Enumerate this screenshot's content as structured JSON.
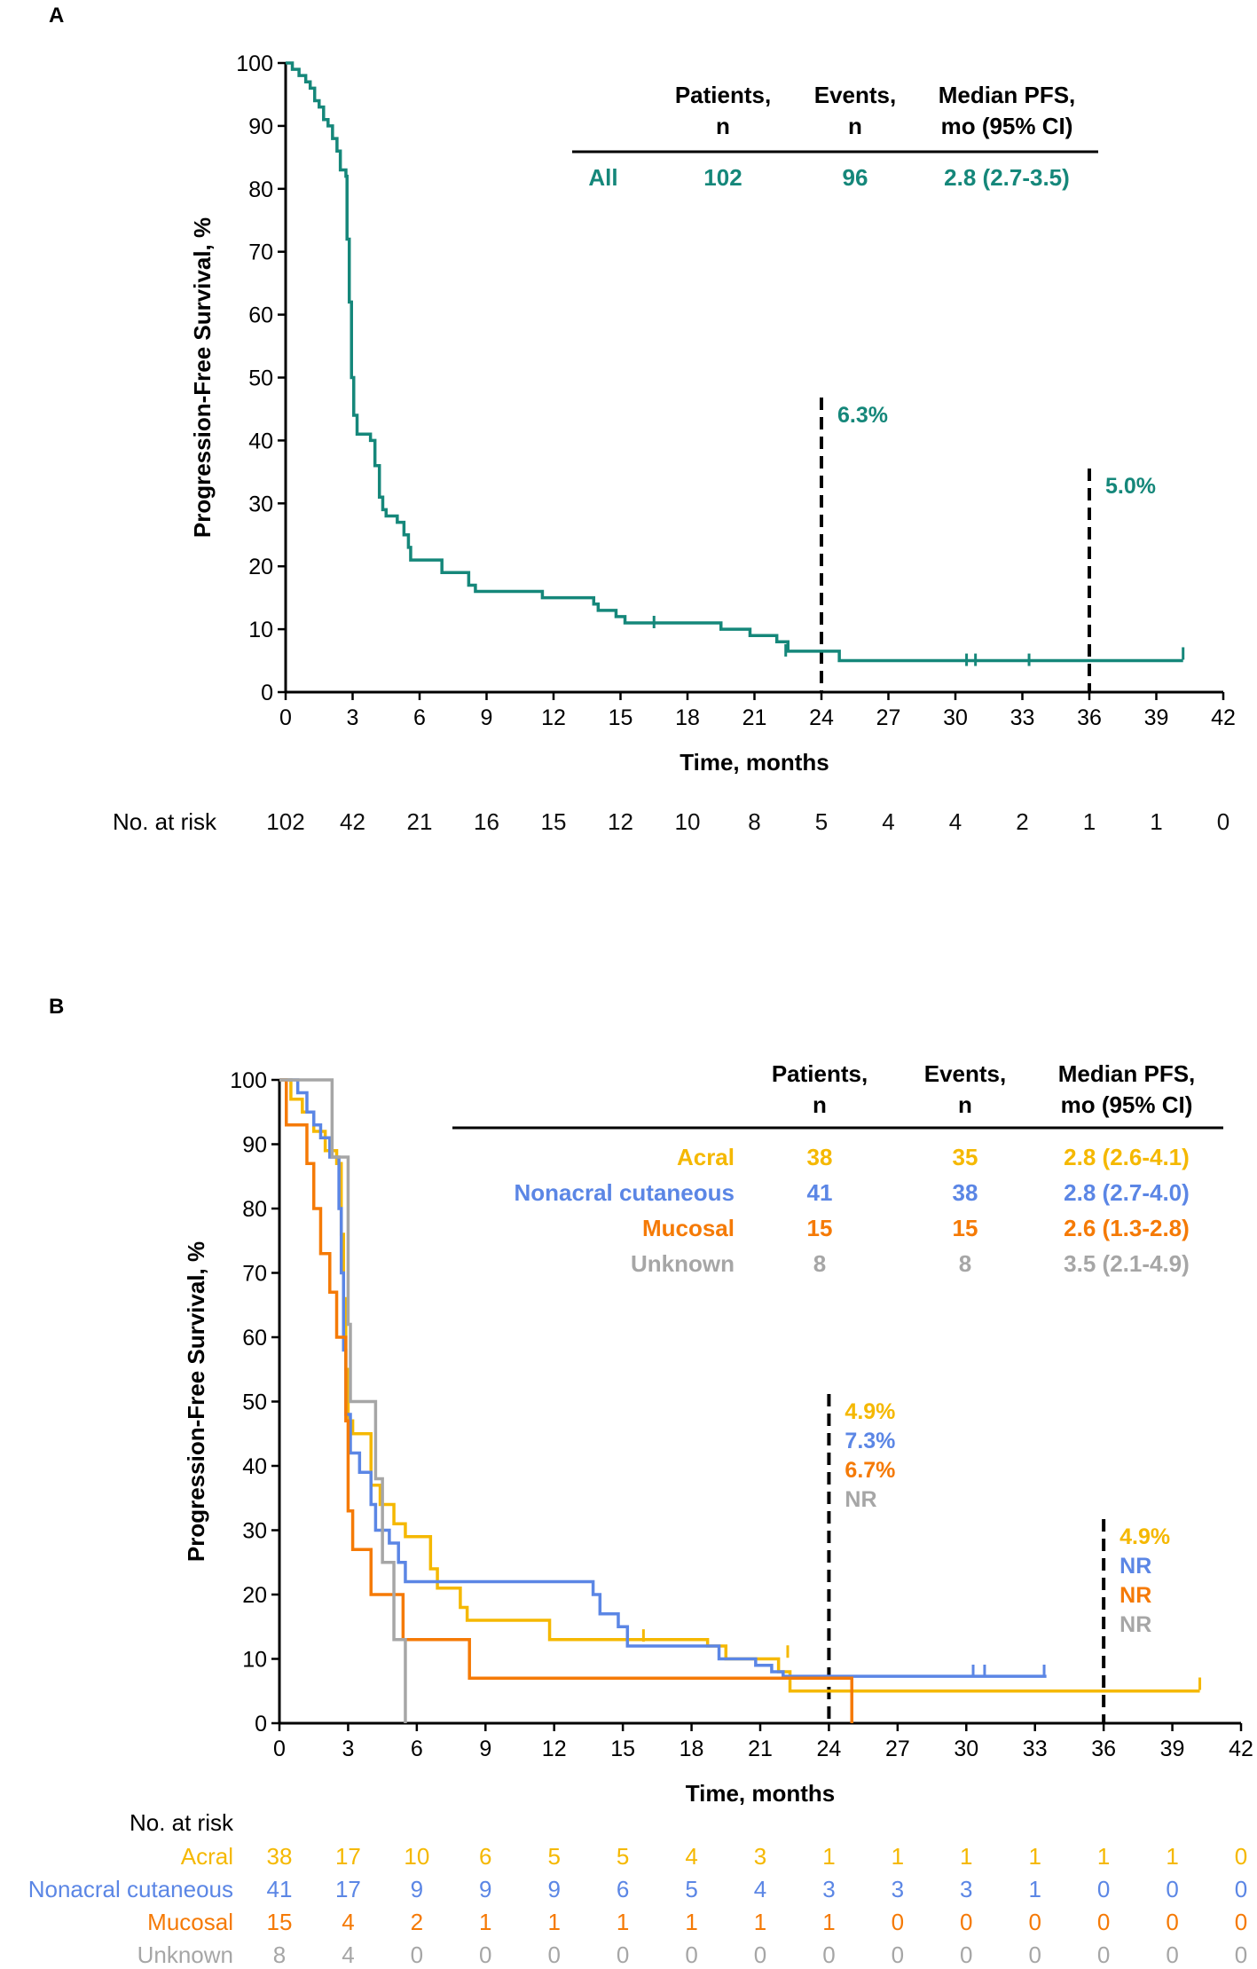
{
  "panel_a": {
    "label": "A",
    "ylabel": "Progression-Free Survival, %",
    "xlabel": "Time, months",
    "table": {
      "headers": [
        [
          "Patients,",
          "n"
        ],
        [
          "Events,",
          "n"
        ],
        [
          "Median PFS,",
          "mo (95% CI)"
        ]
      ],
      "rows": [
        {
          "group": "All",
          "patients": "102",
          "events": "96",
          "median": "2.8 (2.7-3.5)",
          "color": "#15877a"
        }
      ]
    },
    "annotations": [
      {
        "month": 24,
        "texts": [
          "6.3%"
        ],
        "colors": [
          "#15877a"
        ]
      },
      {
        "month": 36,
        "texts": [
          "5.0%"
        ],
        "colors": [
          "#15877a"
        ]
      }
    ],
    "risk_title": "No. at risk",
    "risk_rows": [
      {
        "label": "",
        "color": "#111111",
        "values": [
          "102",
          "42",
          "21",
          "16",
          "15",
          "12",
          "10",
          "8",
          "5",
          "4",
          "4",
          "2",
          "1",
          "1",
          "0"
        ]
      }
    ]
  },
  "panel_b": {
    "label": "B",
    "ylabel": "Progression-Free Survival, %",
    "xlabel": "Time, months",
    "table": {
      "headers": [
        [
          "Patients,",
          "n"
        ],
        [
          "Events,",
          "n"
        ],
        [
          "Median PFS,",
          "mo (95% CI)"
        ]
      ],
      "rows": [
        {
          "group": "Acral",
          "patients": "38",
          "events": "35",
          "median": "2.8 (2.6-4.1)",
          "color": "#f5b800"
        },
        {
          "group": "Nonacral cutaneous",
          "patients": "41",
          "events": "38",
          "median": "2.8 (2.7-4.0)",
          "color": "#5b86e5"
        },
        {
          "group": "Mucosal",
          "patients": "15",
          "events": "15",
          "median": "2.6 (1.3-2.8)",
          "color": "#f57a06"
        },
        {
          "group": "Unknown",
          "patients": "8",
          "events": "8",
          "median": "3.5 (2.1-4.9)",
          "color": "#a6a6a6"
        }
      ]
    },
    "annotations": [
      {
        "month": 24,
        "texts": [
          "4.9%",
          "7.3%",
          "6.7%",
          "NR"
        ],
        "colors": [
          "#f5b800",
          "#5b86e5",
          "#f57a06",
          "#a6a6a6"
        ]
      },
      {
        "month": 36,
        "texts": [
          "4.9%",
          "NR",
          "NR",
          "NR"
        ],
        "colors": [
          "#f5b800",
          "#5b86e5",
          "#f57a06",
          "#a6a6a6"
        ]
      }
    ],
    "risk_title": "No. at risk",
    "risk_rows": [
      {
        "label": "Acral",
        "color": "#f5b800",
        "values": [
          "38",
          "17",
          "10",
          "6",
          "5",
          "5",
          "4",
          "3",
          "1",
          "1",
          "1",
          "1",
          "1",
          "1",
          "0"
        ]
      },
      {
        "label": "Nonacral cutaneous",
        "color": "#5b86e5",
        "values": [
          "41",
          "17",
          "9",
          "9",
          "9",
          "6",
          "5",
          "4",
          "3",
          "3",
          "3",
          "1",
          "0",
          "0",
          "0"
        ]
      },
      {
        "label": "Mucosal",
        "color": "#f57a06",
        "values": [
          "15",
          "4",
          "2",
          "1",
          "1",
          "1",
          "1",
          "1",
          "1",
          "0",
          "0",
          "0",
          "0",
          "0",
          "0"
        ]
      },
      {
        "label": "Unknown",
        "color": "#a6a6a6",
        "values": [
          "8",
          "4",
          "0",
          "0",
          "0",
          "0",
          "0",
          "0",
          "0",
          "0",
          "0",
          "0",
          "0",
          "0",
          "0"
        ]
      }
    ]
  },
  "chart_data": [
    {
      "type": "line",
      "subtype": "kaplan-meier step",
      "title": "A",
      "xlabel": "Time, months",
      "ylabel": "Progression-Free Survival, %",
      "xlim": [
        0,
        42
      ],
      "ylim": [
        0,
        100
      ],
      "xticks": [
        0,
        3,
        6,
        9,
        12,
        15,
        18,
        21,
        24,
        27,
        30,
        33,
        36,
        39,
        42
      ],
      "yticks": [
        0,
        10,
        20,
        30,
        40,
        50,
        60,
        70,
        80,
        90,
        100
      ],
      "series": [
        {
          "name": "All",
          "color": "#15877a",
          "points": [
            [
              0,
              100
            ],
            [
              0.3,
              99
            ],
            [
              0.6,
              98
            ],
            [
              0.9,
              97
            ],
            [
              1.1,
              96
            ],
            [
              1.3,
              94
            ],
            [
              1.5,
              93
            ],
            [
              1.7,
              91
            ],
            [
              1.9,
              90
            ],
            [
              2.1,
              88
            ],
            [
              2.3,
              86
            ],
            [
              2.45,
              83
            ],
            [
              2.7,
              82
            ],
            [
              2.75,
              72
            ],
            [
              2.85,
              62
            ],
            [
              2.95,
              50
            ],
            [
              3.05,
              44
            ],
            [
              3.2,
              41
            ],
            [
              3.8,
              40
            ],
            [
              4.0,
              36
            ],
            [
              4.2,
              31
            ],
            [
              4.35,
              29
            ],
            [
              4.5,
              28
            ],
            [
              5.0,
              27
            ],
            [
              5.3,
              25
            ],
            [
              5.5,
              23
            ],
            [
              5.6,
              21
            ],
            [
              7.0,
              19
            ],
            [
              8.2,
              17
            ],
            [
              8.5,
              16
            ],
            [
              11.5,
              15
            ],
            [
              13.8,
              14
            ],
            [
              14.0,
              13
            ],
            [
              14.8,
              12
            ],
            [
              15.2,
              11
            ],
            [
              19.5,
              10
            ],
            [
              20.8,
              9
            ],
            [
              22.0,
              8
            ],
            [
              22.5,
              6.5
            ],
            [
              24.8,
              5
            ],
            [
              40.2,
              5
            ]
          ],
          "censor_ticks": [
            [
              16.5,
              11
            ],
            [
              22.4,
              6.5
            ],
            [
              30.5,
              5
            ],
            [
              30.9,
              5
            ],
            [
              33.3,
              5
            ],
            [
              40.2,
              6
            ]
          ]
        }
      ],
      "annotations": [
        {
          "x": 24,
          "text": "6.3%"
        },
        {
          "x": 36,
          "text": "5.0%"
        }
      ]
    },
    {
      "type": "line",
      "subtype": "kaplan-meier step",
      "title": "B",
      "xlabel": "Time, months",
      "ylabel": "Progression-Free Survival, %",
      "xlim": [
        0,
        42
      ],
      "ylim": [
        0,
        100
      ],
      "xticks": [
        0,
        3,
        6,
        9,
        12,
        15,
        18,
        21,
        24,
        27,
        30,
        33,
        36,
        39,
        42
      ],
      "yticks": [
        0,
        10,
        20,
        30,
        40,
        50,
        60,
        70,
        80,
        90,
        100
      ],
      "series": [
        {
          "name": "Acral",
          "color": "#f5b800",
          "points": [
            [
              0,
              100
            ],
            [
              0.5,
              97
            ],
            [
              1.0,
              95
            ],
            [
              1.5,
              92
            ],
            [
              2.0,
              89
            ],
            [
              2.5,
              87
            ],
            [
              2.7,
              76
            ],
            [
              2.8,
              66
            ],
            [
              2.9,
              55
            ],
            [
              3.0,
              47
            ],
            [
              3.2,
              45
            ],
            [
              4.0,
              37
            ],
            [
              4.4,
              34
            ],
            [
              5.0,
              31
            ],
            [
              5.5,
              29
            ],
            [
              6.6,
              24
            ],
            [
              6.9,
              21
            ],
            [
              7.9,
              18
            ],
            [
              8.2,
              16
            ],
            [
              11.8,
              13
            ],
            [
              18.7,
              12
            ],
            [
              19.5,
              10
            ],
            [
              21.8,
              8
            ],
            [
              22.3,
              5
            ],
            [
              40.2,
              5
            ]
          ],
          "censor_ticks": [
            [
              15.9,
              13.5
            ],
            [
              22.2,
              11
            ],
            [
              40.2,
              6
            ]
          ]
        },
        {
          "name": "Nonacral cutaneous",
          "color": "#5b86e5",
          "points": [
            [
              0,
              100
            ],
            [
              0.8,
              98
            ],
            [
              1.2,
              95
            ],
            [
              1.5,
              93
            ],
            [
              1.8,
              91
            ],
            [
              2.2,
              88
            ],
            [
              2.6,
              80
            ],
            [
              2.7,
              70
            ],
            [
              2.8,
              58
            ],
            [
              2.9,
              48
            ],
            [
              3.1,
              42
            ],
            [
              3.5,
              39
            ],
            [
              4.0,
              34
            ],
            [
              4.2,
              30
            ],
            [
              4.8,
              28
            ],
            [
              5.2,
              25
            ],
            [
              5.5,
              22
            ],
            [
              13.7,
              20
            ],
            [
              14.0,
              17
            ],
            [
              14.8,
              15
            ],
            [
              15.2,
              12
            ],
            [
              19.2,
              10
            ],
            [
              20.8,
              9
            ],
            [
              21.5,
              8
            ],
            [
              22.0,
              7.3
            ],
            [
              33.5,
              7.3
            ]
          ],
          "censor_ticks": [
            [
              30.3,
              8
            ],
            [
              30.8,
              8
            ],
            [
              33.4,
              8
            ]
          ]
        },
        {
          "name": "Mucosal",
          "color": "#f57a06",
          "points": [
            [
              0,
              100
            ],
            [
              0.3,
              93
            ],
            [
              1.2,
              87
            ],
            [
              1.5,
              80
            ],
            [
              1.8,
              73
            ],
            [
              2.2,
              67
            ],
            [
              2.5,
              60
            ],
            [
              2.9,
              47
            ],
            [
              3.0,
              33
            ],
            [
              3.2,
              27
            ],
            [
              4.0,
              20
            ],
            [
              5.4,
              13
            ],
            [
              8.3,
              7
            ],
            [
              25.0,
              0
            ]
          ],
          "censor_ticks": []
        },
        {
          "name": "Unknown",
          "color": "#a6a6a6",
          "points": [
            [
              0,
              100
            ],
            [
              2.3,
              88
            ],
            [
              3.0,
              62
            ],
            [
              3.1,
              50
            ],
            [
              4.2,
              38
            ],
            [
              4.5,
              25
            ],
            [
              5.0,
              13
            ],
            [
              5.5,
              0
            ]
          ],
          "censor_ticks": []
        }
      ],
      "annotations": [
        {
          "x": 24,
          "texts": [
            "4.9%",
            "7.3%",
            "6.7%",
            "NR"
          ]
        },
        {
          "x": 36,
          "texts": [
            "4.9%",
            "NR",
            "NR",
            "NR"
          ]
        }
      ]
    }
  ]
}
